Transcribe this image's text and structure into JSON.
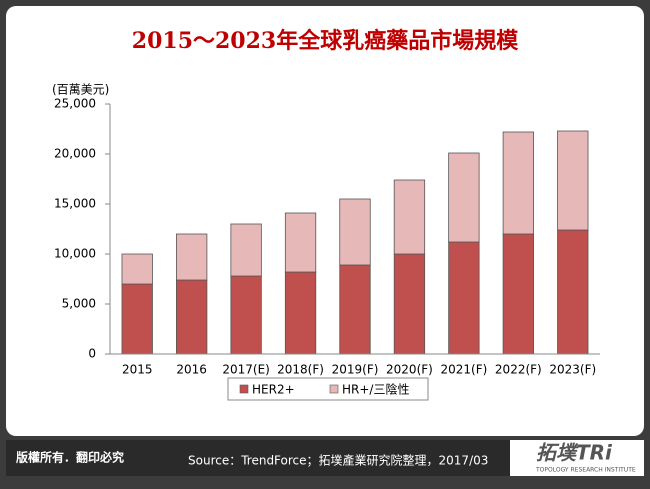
{
  "chart_data": {
    "type": "bar",
    "stacked": true,
    "title": "2015～2023年全球乳癌藥品市場規模",
    "y_label": "(百萬美元)",
    "categories": [
      "2015",
      "2016",
      "2017(E)",
      "2018(F)",
      "2019(F)",
      "2020(F)",
      "2021(F)",
      "2022(F)",
      "2023(F)"
    ],
    "series": [
      {
        "name": "HER2+",
        "color": "#c0504d",
        "values": [
          7000,
          7400,
          7800,
          8200,
          8900,
          10000,
          11200,
          12000,
          12400
        ]
      },
      {
        "name": "HR+/三陰性",
        "color": "#e6b9b8",
        "values": [
          3000,
          4600,
          5200,
          5900,
          6600,
          7400,
          8900,
          10200,
          9900
        ]
      }
    ],
    "ylim": [
      0,
      25000
    ],
    "yticks": [
      0,
      {
        "value": 5000,
        "label": "5,000"
      },
      {
        "value": 10000,
        "label": "10,000"
      },
      {
        "value": 15000,
        "label": "15,000"
      },
      {
        "value": 20000,
        "label": "20,000"
      },
      {
        "value": 25000,
        "label": "25,000"
      }
    ],
    "legend": "bottom"
  },
  "footer": {
    "rights": "版權所有．翻印必究",
    "source": "Source：TrendForce；拓墣產業研究院整理，2017/03",
    "logo": "拓墣TRi",
    "logo_sub": "TOPOLOGY RESEARCH INSTITUTE"
  }
}
